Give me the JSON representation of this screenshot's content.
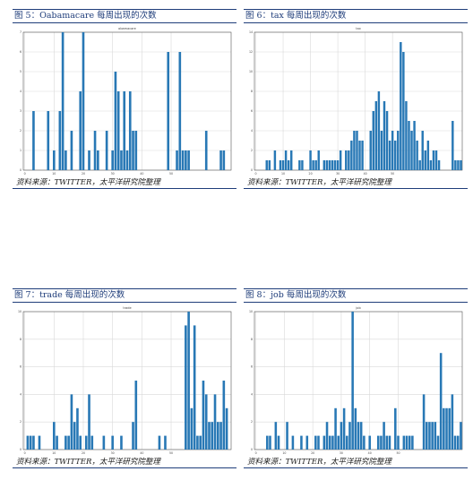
{
  "panels": [
    {
      "fig_title": "图 5：Oabamacare 每周出现的次数",
      "source": "资料来源：TWITTER，太平洋研究院整理",
      "chart_data": {
        "type": "bar",
        "title": "obamacare",
        "ylim": [
          0,
          7
        ],
        "yticks": [
          0,
          1,
          2,
          3,
          4,
          5,
          6,
          7
        ],
        "xticks": [
          0,
          10,
          20,
          30,
          40,
          50
        ],
        "values": [
          0,
          0,
          0,
          3,
          0,
          0,
          0,
          0,
          3,
          0,
          1,
          0,
          3,
          7,
          1,
          0,
          2,
          0,
          0,
          4,
          7,
          0,
          1,
          0,
          2,
          1,
          0,
          0,
          2,
          0,
          1,
          5,
          4,
          1,
          4,
          1,
          4,
          2,
          2,
          0,
          0,
          0,
          0,
          0,
          0,
          0,
          0,
          0,
          0,
          6,
          0,
          0,
          1,
          6,
          1,
          1,
          1,
          0,
          0,
          0,
          0,
          0,
          2,
          0,
          0,
          0,
          0,
          1,
          1,
          0,
          0
        ]
      }
    },
    {
      "fig_title": "图 6：tax 每周出现的次数",
      "source": "资料来源：TWITTER，太平洋研究院整理",
      "chart_data": {
        "type": "bar",
        "title": "tax",
        "ylim": [
          0,
          14
        ],
        "yticks": [
          0,
          2,
          4,
          6,
          8,
          10,
          12,
          14
        ],
        "xticks": [
          0,
          10,
          20,
          30,
          40,
          50
        ],
        "values": [
          0,
          0,
          0,
          0,
          1,
          1,
          0,
          2,
          0,
          1,
          1,
          2,
          1,
          2,
          0,
          0,
          1,
          1,
          0,
          0,
          2,
          1,
          1,
          2,
          0,
          1,
          1,
          1,
          1,
          1,
          1,
          2,
          0,
          2,
          2,
          3,
          4,
          4,
          3,
          3,
          0,
          0,
          4,
          6,
          7,
          8,
          4,
          7,
          6,
          3,
          4,
          3,
          4,
          13,
          12,
          7,
          5,
          4,
          5,
          3,
          1,
          4,
          2,
          3,
          1,
          2,
          2,
          1,
          0,
          0,
          0,
          0,
          5,
          1,
          1,
          1
        ]
      }
    },
    {
      "fig_title": "图 7：trade 每周出现的次数",
      "source": "资料来源：TWITTER，太平洋研究院整理",
      "chart_data": {
        "type": "bar",
        "title": "trade",
        "ylim": [
          0,
          10
        ],
        "yticks": [
          0,
          2,
          4,
          6,
          8,
          10
        ],
        "xticks": [
          0,
          10,
          20,
          30,
          40,
          50
        ],
        "values": [
          0,
          1,
          1,
          1,
          0,
          1,
          0,
          0,
          0,
          0,
          2,
          1,
          0,
          0,
          1,
          1,
          4,
          2,
          3,
          1,
          0,
          1,
          4,
          1,
          0,
          0,
          0,
          1,
          0,
          0,
          1,
          0,
          0,
          1,
          0,
          0,
          0,
          2,
          5,
          0,
          0,
          0,
          0,
          0,
          0,
          0,
          1,
          0,
          1,
          0,
          0,
          0,
          0,
          0,
          0,
          9,
          10,
          3,
          9,
          1,
          1,
          5,
          4,
          2,
          2,
          4,
          2,
          2,
          5,
          3,
          0
        ]
      }
    },
    {
      "fig_title": "图 8：job 每周出现的次数",
      "source": "资料来源：TWITTER，太平洋研究院整理",
      "chart_data": {
        "type": "bar",
        "title": "job",
        "ylim": [
          0,
          10
        ],
        "yticks": [
          0,
          2,
          4,
          6,
          8,
          10
        ],
        "xticks": [
          0,
          10,
          20,
          30,
          40,
          50
        ],
        "values": [
          0,
          0,
          0,
          0,
          1,
          1,
          0,
          2,
          1,
          0,
          0,
          2,
          0,
          1,
          0,
          0,
          1,
          0,
          1,
          0,
          0,
          1,
          1,
          0,
          1,
          2,
          1,
          1,
          3,
          1,
          2,
          3,
          1,
          2,
          10,
          3,
          2,
          2,
          1,
          0,
          1,
          0,
          0,
          1,
          1,
          2,
          1,
          1,
          0,
          3,
          1,
          0,
          1,
          1,
          1,
          1,
          0,
          0,
          0,
          4,
          2,
          2,
          2,
          2,
          1,
          7,
          3,
          3,
          3,
          4,
          1,
          1,
          2
        ]
      }
    }
  ]
}
